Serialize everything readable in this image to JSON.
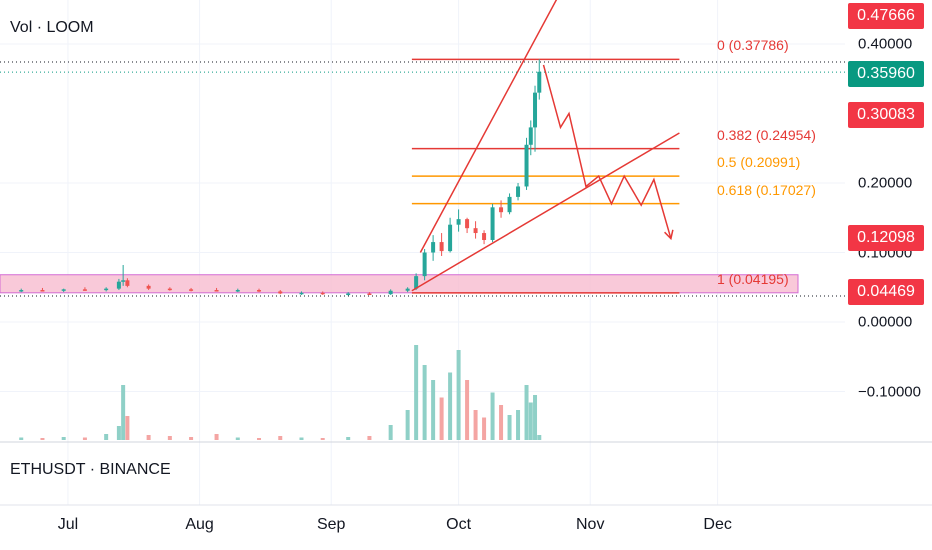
{
  "header": {
    "volume_label": "Vol · LOOM"
  },
  "footer": {
    "pair_label": "ETHUSDT · BINANCE"
  },
  "colors": {
    "up": "#26a69a",
    "down": "#ef5350",
    "fib_red": "#e53935",
    "fib_orange": "#ff9800",
    "badge_red": "#f23645",
    "badge_teal": "#089981",
    "zone_fill": "#f8bbd0",
    "zone_border": "#d36bd3",
    "vol_up": "#8fd0c7",
    "vol_down": "#f4a5a3"
  },
  "price_badges": [
    {
      "label": "0.47666",
      "value": 0.47666,
      "color": "#f23645"
    },
    {
      "label": "0.35960",
      "value": 0.3596,
      "color": "#089981"
    },
    {
      "label": "0.30083",
      "value": 0.30083,
      "color": "#f23645"
    },
    {
      "label": "0.12098",
      "value": 0.12098,
      "color": "#f23645"
    },
    {
      "label": "0.04469",
      "value": 0.04469,
      "color": "#f23645"
    }
  ],
  "fib_levels": [
    {
      "label": "0 (0.37786)",
      "value": 0.37786,
      "color": "#e53935"
    },
    {
      "label": "0.382 (0.24954)",
      "value": 0.24954,
      "color": "#e53935"
    },
    {
      "label": "0.5 (0.20991)",
      "value": 0.20991,
      "color": "#ff9800"
    },
    {
      "label": "0.618 (0.17027)",
      "value": 0.17027,
      "color": "#ff9800"
    },
    {
      "label": "1 (0.04195)",
      "value": 0.04195,
      "color": "#e53935"
    }
  ],
  "chart_data": {
    "type": "candlestick",
    "title": "Vol · LOOM",
    "y_ticks": [
      "0.40000",
      "0.20000",
      "0.10000",
      "0.00000",
      "−0.10000"
    ],
    "y_tick_values": [
      0.4,
      0.2,
      0.1,
      0.0,
      -0.1
    ],
    "x_ticks": [
      "Jul",
      "Aug",
      "Sep",
      "Oct",
      "Nov",
      "Dec"
    ],
    "x_tick_values": [
      "2023-07-01",
      "2023-08-01",
      "2023-09-01",
      "2023-10-01",
      "2023-11-01",
      "2023-12-01"
    ],
    "ylim": [
      -0.14,
      0.5
    ],
    "xlim": [
      "2023-06-15",
      "2023-12-31"
    ],
    "last_price": 0.3596,
    "support_zone": {
      "from": 0.042,
      "to": 0.068
    },
    "candles": [
      {
        "date": "2023-06-20",
        "open": 0.045,
        "high": 0.048,
        "low": 0.043,
        "close": 0.046
      },
      {
        "date": "2023-06-25",
        "open": 0.046,
        "high": 0.049,
        "low": 0.044,
        "close": 0.045
      },
      {
        "date": "2023-06-30",
        "open": 0.045,
        "high": 0.048,
        "low": 0.043,
        "close": 0.047
      },
      {
        "date": "2023-07-05",
        "open": 0.047,
        "high": 0.05,
        "low": 0.045,
        "close": 0.046
      },
      {
        "date": "2023-07-10",
        "open": 0.046,
        "high": 0.05,
        "low": 0.044,
        "close": 0.048
      },
      {
        "date": "2023-07-13",
        "open": 0.048,
        "high": 0.062,
        "low": 0.046,
        "close": 0.058
      },
      {
        "date": "2023-07-14",
        "open": 0.058,
        "high": 0.082,
        "low": 0.052,
        "close": 0.06
      },
      {
        "date": "2023-07-15",
        "open": 0.06,
        "high": 0.063,
        "low": 0.05,
        "close": 0.052
      },
      {
        "date": "2023-07-20",
        "open": 0.052,
        "high": 0.054,
        "low": 0.046,
        "close": 0.048
      },
      {
        "date": "2023-07-25",
        "open": 0.048,
        "high": 0.05,
        "low": 0.045,
        "close": 0.047
      },
      {
        "date": "2023-07-30",
        "open": 0.047,
        "high": 0.049,
        "low": 0.044,
        "close": 0.046
      },
      {
        "date": "2023-08-05",
        "open": 0.046,
        "high": 0.049,
        "low": 0.044,
        "close": 0.045
      },
      {
        "date": "2023-08-10",
        "open": 0.045,
        "high": 0.048,
        "low": 0.043,
        "close": 0.046
      },
      {
        "date": "2023-08-15",
        "open": 0.046,
        "high": 0.048,
        "low": 0.043,
        "close": 0.044
      },
      {
        "date": "2023-08-20",
        "open": 0.044,
        "high": 0.046,
        "low": 0.04,
        "close": 0.041
      },
      {
        "date": "2023-08-25",
        "open": 0.041,
        "high": 0.044,
        "low": 0.039,
        "close": 0.042
      },
      {
        "date": "2023-08-30",
        "open": 0.042,
        "high": 0.044,
        "low": 0.039,
        "close": 0.04
      },
      {
        "date": "2023-09-05",
        "open": 0.04,
        "high": 0.043,
        "low": 0.038,
        "close": 0.041
      },
      {
        "date": "2023-09-10",
        "open": 0.041,
        "high": 0.043,
        "low": 0.039,
        "close": 0.04
      },
      {
        "date": "2023-09-15",
        "open": 0.04,
        "high": 0.047,
        "low": 0.039,
        "close": 0.045
      },
      {
        "date": "2023-09-19",
        "open": 0.045,
        "high": 0.05,
        "low": 0.043,
        "close": 0.048
      },
      {
        "date": "2023-09-21",
        "open": 0.048,
        "high": 0.07,
        "low": 0.046,
        "close": 0.066
      },
      {
        "date": "2023-09-23",
        "open": 0.066,
        "high": 0.105,
        "low": 0.06,
        "close": 0.1
      },
      {
        "date": "2023-09-25",
        "open": 0.1,
        "high": 0.125,
        "low": 0.088,
        "close": 0.115
      },
      {
        "date": "2023-09-27",
        "open": 0.115,
        "high": 0.128,
        "low": 0.095,
        "close": 0.102
      },
      {
        "date": "2023-09-29",
        "open": 0.102,
        "high": 0.15,
        "low": 0.1,
        "close": 0.14
      },
      {
        "date": "2023-10-01",
        "open": 0.14,
        "high": 0.162,
        "low": 0.13,
        "close": 0.148
      },
      {
        "date": "2023-10-03",
        "open": 0.148,
        "high": 0.15,
        "low": 0.128,
        "close": 0.135
      },
      {
        "date": "2023-10-05",
        "open": 0.135,
        "high": 0.145,
        "low": 0.12,
        "close": 0.128
      },
      {
        "date": "2023-10-07",
        "open": 0.128,
        "high": 0.132,
        "low": 0.112,
        "close": 0.118
      },
      {
        "date": "2023-10-09",
        "open": 0.118,
        "high": 0.17,
        "low": 0.115,
        "close": 0.165
      },
      {
        "date": "2023-10-11",
        "open": 0.165,
        "high": 0.175,
        "low": 0.15,
        "close": 0.158
      },
      {
        "date": "2023-10-13",
        "open": 0.158,
        "high": 0.185,
        "low": 0.155,
        "close": 0.18
      },
      {
        "date": "2023-10-15",
        "open": 0.18,
        "high": 0.2,
        "low": 0.175,
        "close": 0.195
      },
      {
        "date": "2023-10-17",
        "open": 0.195,
        "high": 0.265,
        "low": 0.19,
        "close": 0.255
      },
      {
        "date": "2023-10-18",
        "open": 0.255,
        "high": 0.29,
        "low": 0.24,
        "close": 0.28
      },
      {
        "date": "2023-10-19",
        "open": 0.28,
        "high": 0.34,
        "low": 0.245,
        "close": 0.33
      },
      {
        "date": "2023-10-20",
        "open": 0.33,
        "high": 0.378,
        "low": 0.32,
        "close": 0.36
      }
    ],
    "volume": [
      {
        "date": "2023-06-20",
        "value": 0.005
      },
      {
        "date": "2023-06-25",
        "value": 0.004
      },
      {
        "date": "2023-06-30",
        "value": 0.006
      },
      {
        "date": "2023-07-05",
        "value": 0.005
      },
      {
        "date": "2023-07-10",
        "value": 0.012
      },
      {
        "date": "2023-07-13",
        "value": 0.028
      },
      {
        "date": "2023-07-14",
        "value": 0.11
      },
      {
        "date": "2023-07-15",
        "value": 0.048
      },
      {
        "date": "2023-07-20",
        "value": 0.01
      },
      {
        "date": "2023-07-25",
        "value": 0.008
      },
      {
        "date": "2023-07-30",
        "value": 0.006
      },
      {
        "date": "2023-08-05",
        "value": 0.012
      },
      {
        "date": "2023-08-10",
        "value": 0.005
      },
      {
        "date": "2023-08-15",
        "value": 0.004
      },
      {
        "date": "2023-08-20",
        "value": 0.008
      },
      {
        "date": "2023-08-25",
        "value": 0.005
      },
      {
        "date": "2023-08-30",
        "value": 0.004
      },
      {
        "date": "2023-09-05",
        "value": 0.006
      },
      {
        "date": "2023-09-10",
        "value": 0.008
      },
      {
        "date": "2023-09-15",
        "value": 0.03
      },
      {
        "date": "2023-09-19",
        "value": 0.06
      },
      {
        "date": "2023-09-21",
        "value": 0.19
      },
      {
        "date": "2023-09-23",
        "value": 0.15
      },
      {
        "date": "2023-09-25",
        "value": 0.12
      },
      {
        "date": "2023-09-27",
        "value": 0.085
      },
      {
        "date": "2023-09-29",
        "value": 0.135
      },
      {
        "date": "2023-10-01",
        "value": 0.18
      },
      {
        "date": "2023-10-03",
        "value": 0.12
      },
      {
        "date": "2023-10-05",
        "value": 0.06
      },
      {
        "date": "2023-10-07",
        "value": 0.045
      },
      {
        "date": "2023-10-09",
        "value": 0.095
      },
      {
        "date": "2023-10-11",
        "value": 0.07
      },
      {
        "date": "2023-10-13",
        "value": 0.05
      },
      {
        "date": "2023-10-15",
        "value": 0.06
      },
      {
        "date": "2023-10-17",
        "value": 0.11
      },
      {
        "date": "2023-10-18",
        "value": 0.075
      },
      {
        "date": "2023-10-19",
        "value": 0.09
      },
      {
        "date": "2023-10-20",
        "value": 0.01
      }
    ],
    "drawings": {
      "channel_upper": [
        {
          "date": "2023-09-22",
          "price": 0.1
        },
        {
          "date": "2023-10-29",
          "price": 0.52
        }
      ],
      "channel_lower": [
        {
          "date": "2023-09-20",
          "price": 0.045
        },
        {
          "date": "2023-11-22",
          "price": 0.272
        }
      ],
      "fib_range": {
        "from": "2023-09-20",
        "to": "2023-11-22"
      },
      "zigzag_projection": [
        {
          "date": "2023-10-21",
          "price": 0.37
        },
        {
          "date": "2023-10-25",
          "price": 0.28
        },
        {
          "date": "2023-10-27",
          "price": 0.3
        },
        {
          "date": "2023-10-31",
          "price": 0.195
        },
        {
          "date": "2023-11-03",
          "price": 0.21
        },
        {
          "date": "2023-11-06",
          "price": 0.17
        },
        {
          "date": "2023-11-09",
          "price": 0.21
        },
        {
          "date": "2023-11-13",
          "price": 0.168
        },
        {
          "date": "2023-11-16",
          "price": 0.205
        },
        {
          "date": "2023-11-20",
          "price": 0.12
        }
      ]
    }
  }
}
